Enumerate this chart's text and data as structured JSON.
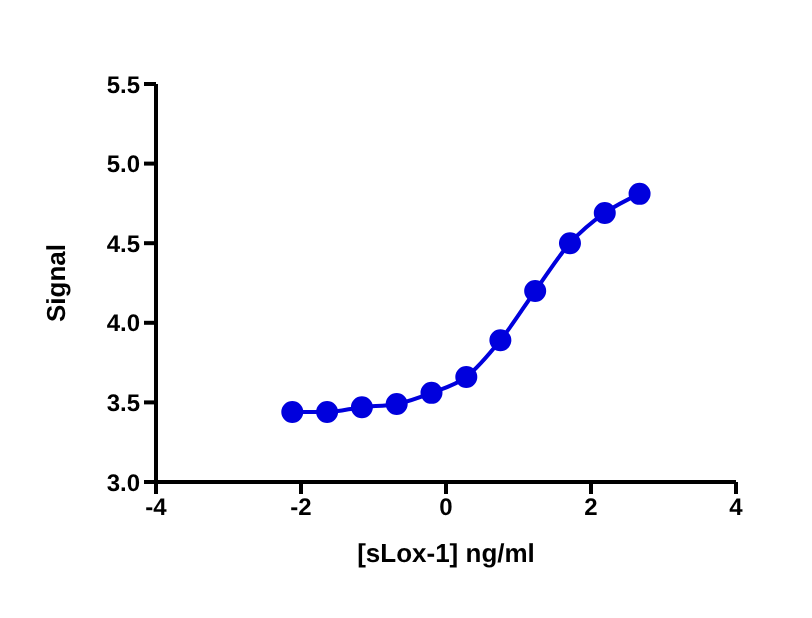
{
  "chart_data": {
    "type": "line",
    "xlabel": "[sLox-1] ng/ml",
    "ylabel": "Signal",
    "xlim": [
      -4,
      4
    ],
    "xticks": [
      -4,
      -2,
      0,
      2,
      4
    ],
    "ylim": [
      3.0,
      5.5
    ],
    "yticks": [
      {
        "value": 3.0,
        "label": "3.0"
      },
      {
        "value": 3.5,
        "label": "3.5"
      },
      {
        "value": 4.0,
        "label": "4.0"
      },
      {
        "value": 4.5,
        "label": "4.5"
      },
      {
        "value": 5.0,
        "label": "5.0"
      },
      {
        "value": 5.5,
        "label": "5.5"
      }
    ],
    "grid": false,
    "legend": false,
    "marker": "circle",
    "line_style": "solid",
    "series": [
      {
        "color": "#0000dd",
        "x": [
          -2.12,
          -1.64,
          -1.16,
          -0.68,
          -0.2,
          0.28,
          0.75,
          1.23,
          1.71,
          2.19,
          2.67
        ],
        "values": [
          3.44,
          3.44,
          3.47,
          3.49,
          3.56,
          3.66,
          3.89,
          4.2,
          4.5,
          4.69,
          4.81
        ]
      }
    ]
  }
}
